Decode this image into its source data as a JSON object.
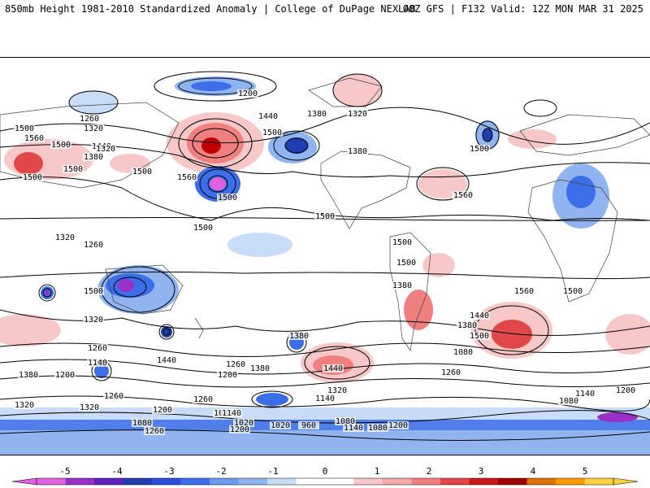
{
  "header": {
    "left": "850mb Height 1981-2010 Standardized Anomaly | College of DuPage NEXLAB",
    "right": "00Z GFS | F132 Valid: 12Z MON MAR 31 2025"
  },
  "colors": {
    "anom_neg": [
      "#e060e0",
      "#9a30c8",
      "#1f3fb0",
      "#3b6ee8",
      "#8fb4f0",
      "#c8dcf8"
    ],
    "anom_pos": [
      "#f8c8c8",
      "#f08080",
      "#e04848",
      "#c00000",
      "#ff9a00",
      "#ffd040"
    ],
    "land": "#ffffff",
    "contour": "#000000",
    "coast": "#404040"
  },
  "contour_labels": [
    "1500",
    "1560",
    "1500",
    "1320",
    "1260",
    "1500",
    "1380",
    "1500",
    "1440",
    "1320",
    "1200",
    "1320",
    "1260",
    "1380",
    "1380",
    "1440",
    "1320",
    "1380",
    "1500",
    "1560",
    "1500",
    "1500",
    "1500",
    "1500",
    "1500",
    "1500",
    "1560",
    "1500",
    "1500",
    "1380",
    "1320",
    "1260",
    "1140",
    "1200",
    "1260",
    "1320",
    "1440",
    "1260",
    "1380",
    "1320",
    "1440",
    "1380",
    "1320",
    "1200",
    "1260",
    "1080",
    "1020",
    "1140",
    "1140",
    "1200",
    "1080",
    "960",
    "1020",
    "1080",
    "1200",
    "1140",
    "1080",
    "1200",
    "1260",
    "1080",
    "1140",
    "1200",
    "1260",
    "1080",
    "1500",
    "1440",
    "1380",
    "1500",
    "1560"
  ],
  "colorbar": {
    "ticks": [
      "-5",
      "-4",
      "-3",
      "-2",
      "-1",
      "0",
      "1",
      "2",
      "3",
      "4",
      "5"
    ],
    "segments": [
      "#e060e0",
      "#9a30c8",
      "#6020c0",
      "#1f3fb0",
      "#2850d8",
      "#3b6ee8",
      "#6b9cf0",
      "#8fb4f0",
      "#c8dcf8",
      "#ffffff",
      "#ffffff",
      "#f8c8c8",
      "#f4a8a8",
      "#f08080",
      "#e04848",
      "#c81818",
      "#a00000",
      "#e07000",
      "#ff9a00",
      "#ffd040"
    ]
  }
}
